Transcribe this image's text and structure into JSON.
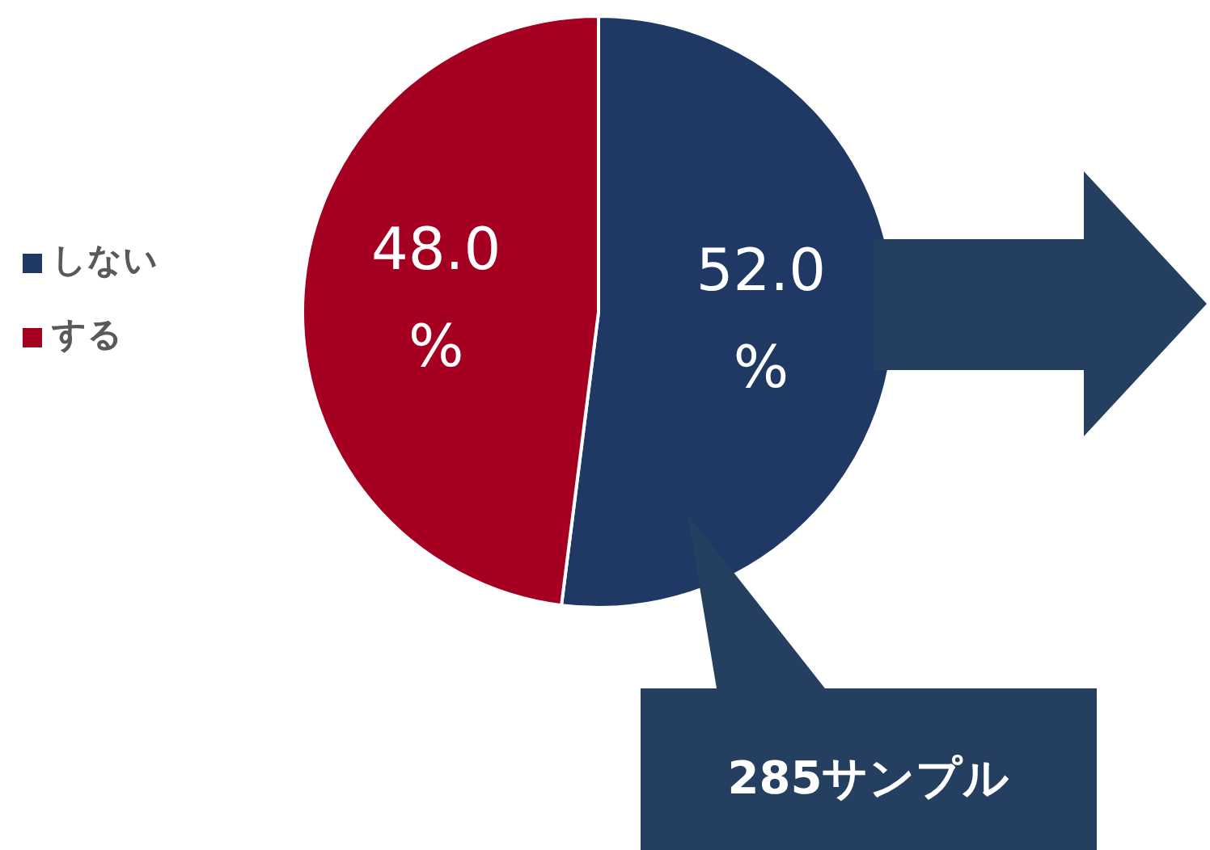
{
  "chart_data": {
    "type": "pie",
    "categories": [
      "しない",
      "する"
    ],
    "values": [
      52.0,
      48.0
    ],
    "colors": [
      "#1f3864",
      "#a50021"
    ],
    "value_labels": [
      "52.0 %",
      "48.0 %"
    ],
    "legend": "left",
    "annotations": [
      "285サンプル"
    ]
  }
}
